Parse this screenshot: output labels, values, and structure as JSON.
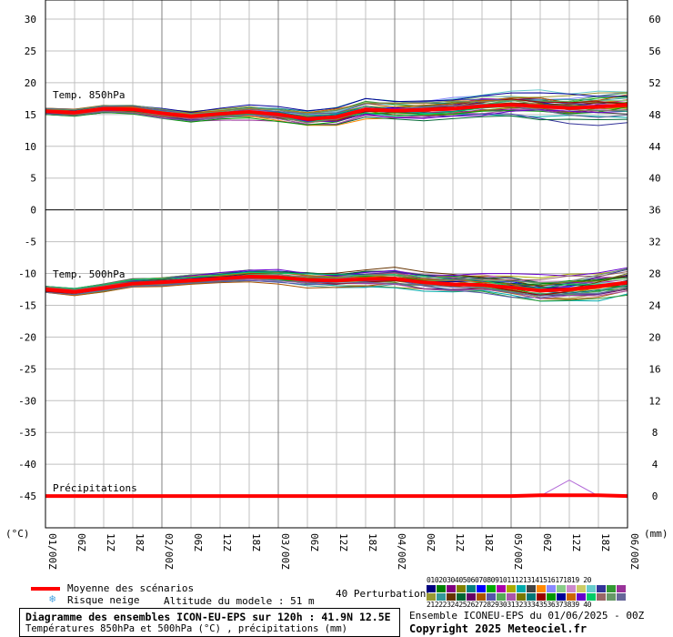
{
  "chart_data": {
    "type": "line",
    "x_ticks": [
      "01/00Z",
      "06Z",
      "12Z",
      "18Z",
      "02/00Z",
      "06Z",
      "12Z",
      "18Z",
      "03/00Z",
      "06Z",
      "12Z",
      "18Z",
      "04/00Z",
      "06Z",
      "12Z",
      "18Z",
      "05/00Z",
      "06Z",
      "12Z",
      "18Z",
      "06/00Z"
    ],
    "x_hours_range": [
      0,
      120
    ],
    "y_left_ticks": [
      30,
      25,
      20,
      15,
      10,
      5,
      0,
      -5,
      -10,
      -15,
      -20,
      -25,
      -30,
      -35,
      -40,
      -45
    ],
    "y_left_range": [
      -50,
      30
    ],
    "y_left_unit": "(°C)",
    "y_right_ticks": [
      60,
      56,
      52,
      48,
      44,
      40,
      36,
      32,
      28,
      24,
      20,
      16,
      12,
      8,
      4,
      0
    ],
    "y_right_range": [
      -4,
      60
    ],
    "y_right_unit": "(mm)",
    "grid": true,
    "panels": [
      {
        "name": "Temp. 850hPa",
        "mean_color": "#ff0000"
      },
      {
        "name": "Temp. 500hPa",
        "mean_color": "#ff0000"
      },
      {
        "name": "Précipitations",
        "mean_color": "#ff0000"
      }
    ],
    "series": [
      {
        "name": "Temp. 850hPa",
        "x": [
          0,
          6,
          12,
          18,
          24,
          30,
          36,
          42,
          48,
          54,
          60,
          66,
          72,
          78,
          84,
          90,
          96,
          102,
          108,
          114,
          120
        ],
        "values": [
          15.5,
          15.3,
          15.9,
          15.8,
          15.2,
          14.7,
          15.1,
          15.4,
          15.0,
          14.3,
          14.6,
          15.8,
          15.6,
          15.7,
          15.9,
          16.3,
          16.5,
          16.3,
          16.0,
          16.2,
          16.5
        ]
      },
      {
        "name": "Temp. 500hPa",
        "x": [
          0,
          6,
          12,
          18,
          24,
          30,
          36,
          42,
          48,
          54,
          60,
          66,
          72,
          78,
          84,
          90,
          96,
          102,
          108,
          114,
          120
        ],
        "values": [
          -12.5,
          -12.9,
          -12.3,
          -11.6,
          -11.4,
          -11.1,
          -10.8,
          -10.5,
          -10.6,
          -11.0,
          -11.1,
          -10.9,
          -10.8,
          -11.4,
          -11.7,
          -11.8,
          -12.2,
          -12.7,
          -12.5,
          -12.0,
          -11.4
        ]
      },
      {
        "name": "Précipitations",
        "x": [
          0,
          6,
          12,
          18,
          24,
          30,
          36,
          42,
          48,
          54,
          60,
          66,
          72,
          78,
          84,
          90,
          96,
          102,
          108,
          114,
          120
        ],
        "values": [
          0,
          0,
          0,
          0,
          0,
          0,
          0,
          0,
          0,
          0,
          0,
          0,
          0,
          0,
          0,
          0,
          0,
          0.1,
          0.1,
          0.1,
          0
        ]
      }
    ],
    "members_count": 40
  },
  "legend": {
    "mean_label": "Moyenne des scénarios",
    "snow_label": "Risque neige",
    "altitude_label": "Altitude du modele : 51 m",
    "perturbations_label": "40 Perturbations",
    "member_numbers_row1": "01020304050607080910111213141516171819 20",
    "member_numbers_row2": "21222324252627282930313233343536373839 40",
    "snow_icon": "snowflake-icon"
  },
  "footer": {
    "title": "Diagramme des ensembles ICON-EU-EPS sur 120h : 41.9N 12.5E",
    "subtitle": "Températures 850hPa et 500hPa (°C) , précipitations (mm)",
    "run_label": "Ensemble ICONEU-EPS du 01/06/2025 - 00Z",
    "copyright": "Copyright 2025 Meteociel.fr"
  },
  "colors": {
    "mean": "#ff0000",
    "grid": "#c0c0c0",
    "major_grid": "#808080",
    "members": [
      "#000080",
      "#008000",
      "#800080",
      "#808000",
      "#008080",
      "#0000ff",
      "#00aa00",
      "#aa00aa",
      "#aaaa00",
      "#00aaaa",
      "#444444",
      "#ff8800",
      "#8888ff",
      "#88cc88",
      "#cc88cc",
      "#cccc66",
      "#66cccc",
      "#333399",
      "#339933",
      "#993399",
      "#999933",
      "#339999",
      "#663300",
      "#006633",
      "#660066",
      "#aa5500",
      "#5555aa",
      "#55aa55",
      "#aa55aa",
      "#777700",
      "#007777",
      "#990000",
      "#009900",
      "#000099",
      "#cc6600",
      "#6600cc",
      "#00cc66",
      "#996666",
      "#669966",
      "#666699"
    ]
  }
}
